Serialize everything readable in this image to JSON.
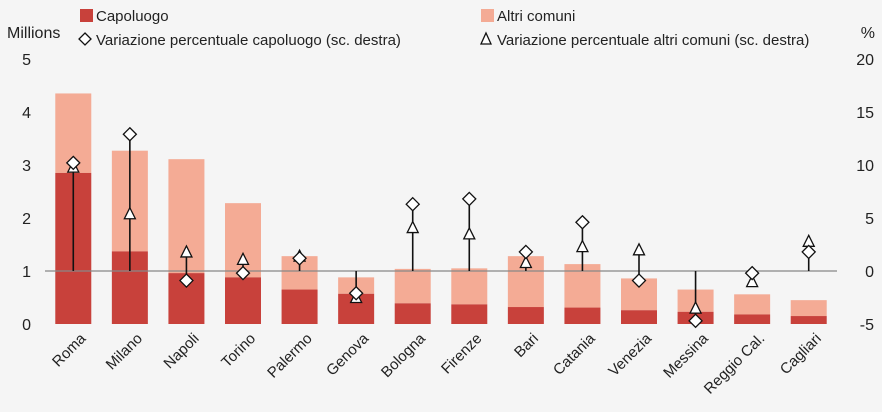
{
  "chart_data": {
    "type": "bar",
    "categories": [
      "Roma",
      "Milano",
      "Napoli",
      "Torino",
      "Palermo",
      "Genova",
      "Bologna",
      "Firenze",
      "Bari",
      "Catania",
      "Venezia",
      "Messina",
      "Reggio Cal.",
      "Cagliari"
    ],
    "series": [
      {
        "name": "Capoluogo",
        "axis": "left",
        "kind": "stacked-bar",
        "color": "#c8413b",
        "values": [
          2.85,
          1.37,
          0.96,
          0.88,
          0.65,
          0.57,
          0.39,
          0.37,
          0.32,
          0.31,
          0.26,
          0.23,
          0.18,
          0.15
        ]
      },
      {
        "name": "Altri comuni",
        "axis": "left",
        "kind": "stacked-bar",
        "color": "#f4ab95",
        "values": [
          1.5,
          1.9,
          2.15,
          1.4,
          0.63,
          0.31,
          0.65,
          0.68,
          0.96,
          0.82,
          0.6,
          0.42,
          0.38,
          0.3
        ]
      },
      {
        "name": "Variazione percentuale capoluogo (sc. destra)",
        "axis": "right",
        "kind": "marker",
        "marker": "diamond",
        "values": [
          10.2,
          12.9,
          -0.9,
          -0.2,
          1.2,
          -2.1,
          6.3,
          6.8,
          1.8,
          4.6,
          -0.9,
          -4.7,
          -0.2,
          1.8
        ]
      },
      {
        "name": "Variazione percentuale altri comuni (sc. destra)",
        "axis": "right",
        "kind": "marker",
        "marker": "triangle",
        "values": [
          9.8,
          5.4,
          1.8,
          1.1,
          1.4,
          -2.5,
          4.1,
          3.5,
          0.8,
          2.3,
          2.0,
          -3.5,
          -1.0,
          2.8
        ]
      }
    ],
    "ylabel_left": "Millions",
    "ylabel_right": "%",
    "ylim_left": [
      0,
      5
    ],
    "ylim_right": [
      -5,
      20
    ],
    "yticks_left": [
      "0",
      "1",
      "2",
      "3",
      "4",
      "5"
    ],
    "yticks_right": [
      "-5",
      "0",
      "5",
      "10",
      "15",
      "20"
    ],
    "legend_position": "top",
    "grid": false
  }
}
